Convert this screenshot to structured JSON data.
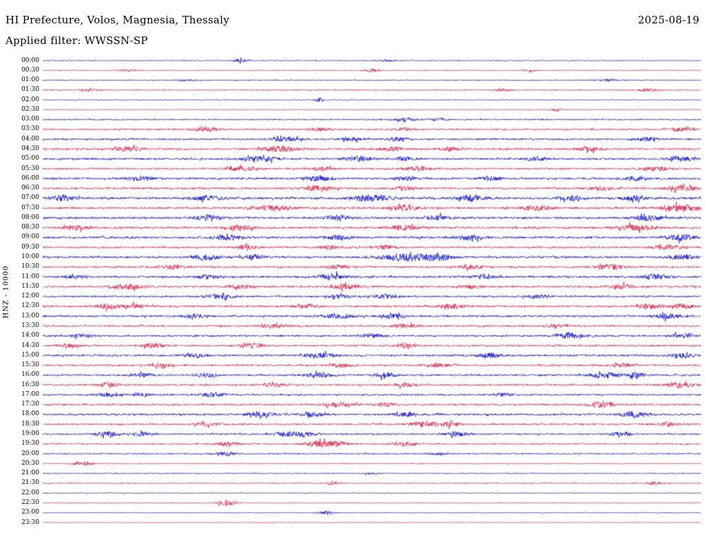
{
  "header": {
    "title": "HI Prefecture, Volos, Magnesia, Thessaly",
    "date": "2025-08-19",
    "filter_line": "Applied filter: WWSSN-SP"
  },
  "y_axis_label": "HNZ - 10000",
  "colors": {
    "background": "#ffffff",
    "text": "#000000",
    "blue": "#0000cd",
    "red": "#dc143c"
  },
  "chart_data": {
    "type": "line",
    "title": "HI Prefecture, Volos, Magnesia, Thessaly",
    "date": "2025-08-19",
    "applied_filter": "WWSSN-SP",
    "channel_scale_label": "HNZ - 10000",
    "layout_hint": "helicorder drum plot, 48 half-hour rows, alternating blue/red traces, labels on left, no grid",
    "minutes_per_row": 30,
    "rows": [
      {
        "time": "00:00",
        "color": "blue",
        "amp": 0.55,
        "bursts": [
          [
            0.3,
            0.008,
            2.2
          ],
          [
            0.52,
            0.01,
            1.3
          ]
        ]
      },
      {
        "time": "00:30",
        "color": "red",
        "amp": 0.55,
        "bursts": [
          [
            0.13,
            0.01,
            1.4
          ],
          [
            0.5,
            0.008,
            2.0
          ],
          [
            0.74,
            0.008,
            1.4
          ]
        ]
      },
      {
        "time": "01:00",
        "color": "blue",
        "amp": 0.65,
        "bursts": [
          [
            0.22,
            0.01,
            1.2
          ],
          [
            0.86,
            0.01,
            1.4
          ]
        ]
      },
      {
        "time": "01:30",
        "color": "red",
        "amp": 0.75,
        "bursts": [
          [
            0.07,
            0.01,
            1.5
          ],
          [
            0.7,
            0.01,
            1.5
          ],
          [
            0.92,
            0.01,
            2.0
          ]
        ]
      },
      {
        "time": "02:00",
        "color": "blue",
        "amp": 0.45,
        "bursts": [
          [
            0.42,
            0.004,
            3.6
          ]
        ]
      },
      {
        "time": "02:30",
        "color": "red",
        "amp": 0.55,
        "bursts": [
          [
            0.78,
            0.006,
            2.8
          ]
        ]
      },
      {
        "time": "03:00",
        "color": "blue",
        "amp": 0.85,
        "bursts": [
          [
            0.55,
            0.012,
            2.2
          ],
          [
            0.6,
            0.008,
            1.8
          ]
        ]
      },
      {
        "time": "03:30",
        "color": "red",
        "amp": 1.05,
        "bursts": [
          [
            0.25,
            0.015,
            2.4
          ],
          [
            0.42,
            0.012,
            2.0
          ],
          [
            0.55,
            0.01,
            2.0
          ],
          [
            0.97,
            0.012,
            2.4
          ]
        ]
      },
      {
        "time": "04:00",
        "color": "blue",
        "amp": 1.15,
        "bursts": [
          [
            0.37,
            0.015,
            3.0
          ],
          [
            0.47,
            0.012,
            2.4
          ],
          [
            0.54,
            0.01,
            2.4
          ],
          [
            0.92,
            0.012,
            2.4
          ]
        ]
      },
      {
        "time": "04:30",
        "color": "red",
        "amp": 1.25,
        "bursts": [
          [
            0.13,
            0.015,
            2.8
          ],
          [
            0.36,
            0.02,
            3.4
          ],
          [
            0.53,
            0.012,
            2.4
          ],
          [
            0.62,
            0.01,
            2.4
          ],
          [
            0.83,
            0.012,
            2.8
          ]
        ]
      },
      {
        "time": "05:00",
        "color": "blue",
        "amp": 1.25,
        "bursts": [
          [
            0.33,
            0.02,
            3.0
          ],
          [
            0.48,
            0.015,
            3.0
          ],
          [
            0.55,
            0.01,
            2.4
          ],
          [
            0.75,
            0.012,
            2.4
          ],
          [
            0.97,
            0.015,
            3.0
          ]
        ]
      },
      {
        "time": "05:30",
        "color": "red",
        "amp": 1.15,
        "bursts": [
          [
            0.3,
            0.015,
            2.4
          ],
          [
            0.43,
            0.012,
            2.0
          ],
          [
            0.57,
            0.015,
            2.4
          ],
          [
            0.93,
            0.015,
            2.8
          ]
        ]
      },
      {
        "time": "06:00",
        "color": "blue",
        "amp": 1.25,
        "bursts": [
          [
            0.15,
            0.015,
            2.4
          ],
          [
            0.42,
            0.015,
            3.0
          ],
          [
            0.55,
            0.012,
            2.4
          ],
          [
            0.68,
            0.012,
            2.4
          ],
          [
            0.9,
            0.012,
            2.4
          ]
        ]
      },
      {
        "time": "06:30",
        "color": "red",
        "amp": 1.25,
        "bursts": [
          [
            0.42,
            0.015,
            3.0
          ],
          [
            0.55,
            0.012,
            2.4
          ],
          [
            0.85,
            0.012,
            2.4
          ],
          [
            0.97,
            0.015,
            3.4
          ]
        ]
      },
      {
        "time": "07:00",
        "color": "blue",
        "amp": 1.45,
        "bursts": [
          [
            0.03,
            0.012,
            3.8
          ],
          [
            0.25,
            0.015,
            3.0
          ],
          [
            0.5,
            0.02,
            3.4
          ],
          [
            0.65,
            0.015,
            3.4
          ],
          [
            0.8,
            0.012,
            3.0
          ],
          [
            0.9,
            0.012,
            3.0
          ]
        ]
      },
      {
        "time": "07:30",
        "color": "red",
        "amp": 1.35,
        "bursts": [
          [
            0.35,
            0.02,
            3.0
          ],
          [
            0.55,
            0.015,
            3.0
          ],
          [
            0.75,
            0.015,
            3.0
          ],
          [
            0.97,
            0.02,
            3.8
          ]
        ]
      },
      {
        "time": "08:00",
        "color": "blue",
        "amp": 1.35,
        "bursts": [
          [
            0.25,
            0.015,
            3.0
          ],
          [
            0.45,
            0.015,
            3.0
          ],
          [
            0.6,
            0.012,
            2.4
          ],
          [
            0.92,
            0.015,
            3.4
          ]
        ]
      },
      {
        "time": "08:30",
        "color": "red",
        "amp": 1.35,
        "bursts": [
          [
            0.05,
            0.012,
            3.0
          ],
          [
            0.3,
            0.015,
            3.0
          ],
          [
            0.55,
            0.015,
            3.0
          ],
          [
            0.9,
            0.02,
            3.4
          ]
        ]
      },
      {
        "time": "09:00",
        "color": "blue",
        "amp": 1.35,
        "bursts": [
          [
            0.28,
            0.015,
            3.0
          ],
          [
            0.45,
            0.012,
            3.0
          ],
          [
            0.65,
            0.015,
            3.0
          ],
          [
            0.97,
            0.015,
            3.4
          ]
        ]
      },
      {
        "time": "09:30",
        "color": "red",
        "amp": 1.15,
        "bursts": [
          [
            0.31,
            0.012,
            3.0
          ],
          [
            0.44,
            0.012,
            2.4
          ],
          [
            0.52,
            0.012,
            2.4
          ],
          [
            0.95,
            0.015,
            3.0
          ]
        ]
      },
      {
        "time": "10:00",
        "color": "blue",
        "amp": 1.35,
        "bursts": [
          [
            0.25,
            0.015,
            3.4
          ],
          [
            0.32,
            0.012,
            3.0
          ],
          [
            0.55,
            0.025,
            4.4
          ],
          [
            0.6,
            0.015,
            3.8
          ],
          [
            0.97,
            0.015,
            3.0
          ]
        ]
      },
      {
        "time": "10:30",
        "color": "red",
        "amp": 1.15,
        "bursts": [
          [
            0.2,
            0.012,
            2.4
          ],
          [
            0.45,
            0.012,
            2.4
          ],
          [
            0.65,
            0.012,
            2.4
          ],
          [
            0.86,
            0.015,
            3.8
          ]
        ]
      },
      {
        "time": "11:00",
        "color": "blue",
        "amp": 1.25,
        "bursts": [
          [
            0.05,
            0.012,
            2.4
          ],
          [
            0.25,
            0.012,
            2.4
          ],
          [
            0.44,
            0.015,
            3.4
          ],
          [
            0.67,
            0.012,
            3.0
          ],
          [
            0.93,
            0.015,
            3.0
          ]
        ]
      },
      {
        "time": "11:30",
        "color": "red",
        "amp": 1.25,
        "bursts": [
          [
            0.13,
            0.015,
            3.4
          ],
          [
            0.3,
            0.012,
            2.4
          ],
          [
            0.46,
            0.015,
            3.0
          ],
          [
            0.65,
            0.012,
            2.4
          ],
          [
            0.88,
            0.012,
            2.4
          ]
        ]
      },
      {
        "time": "12:00",
        "color": "blue",
        "amp": 1.15,
        "bursts": [
          [
            0.27,
            0.015,
            3.0
          ],
          [
            0.45,
            0.012,
            2.4
          ],
          [
            0.52,
            0.012,
            2.4
          ],
          [
            0.75,
            0.012,
            2.4
          ]
        ]
      },
      {
        "time": "12:30",
        "color": "red",
        "amp": 1.25,
        "bursts": [
          [
            0.1,
            0.012,
            3.4
          ],
          [
            0.14,
            0.01,
            3.0
          ],
          [
            0.4,
            0.012,
            2.4
          ],
          [
            0.62,
            0.012,
            3.0
          ],
          [
            0.92,
            0.012,
            3.0
          ],
          [
            0.97,
            0.012,
            3.4
          ]
        ]
      },
      {
        "time": "13:00",
        "color": "blue",
        "amp": 1.25,
        "bursts": [
          [
            0.23,
            0.012,
            2.4
          ],
          [
            0.45,
            0.015,
            3.0
          ],
          [
            0.53,
            0.012,
            3.0
          ],
          [
            0.95,
            0.015,
            3.0
          ]
        ]
      },
      {
        "time": "13:30",
        "color": "red",
        "amp": 1.15,
        "bursts": [
          [
            0.35,
            0.015,
            2.4
          ],
          [
            0.55,
            0.012,
            2.4
          ],
          [
            0.78,
            0.012,
            2.4
          ]
        ]
      },
      {
        "time": "14:00",
        "color": "blue",
        "amp": 1.15,
        "bursts": [
          [
            0.06,
            0.01,
            2.4
          ],
          [
            0.5,
            0.012,
            2.4
          ],
          [
            0.8,
            0.015,
            3.8
          ],
          [
            0.97,
            0.012,
            2.4
          ]
        ]
      },
      {
        "time": "14:30",
        "color": "red",
        "amp": 1.15,
        "bursts": [
          [
            0.04,
            0.01,
            2.4
          ],
          [
            0.17,
            0.012,
            3.0
          ],
          [
            0.32,
            0.012,
            3.0
          ],
          [
            0.55,
            0.012,
            2.4
          ]
        ]
      },
      {
        "time": "15:00",
        "color": "blue",
        "amp": 1.25,
        "bursts": [
          [
            0.23,
            0.012,
            2.4
          ],
          [
            0.42,
            0.015,
            3.0
          ],
          [
            0.68,
            0.012,
            3.0
          ],
          [
            0.97,
            0.012,
            3.0
          ]
        ]
      },
      {
        "time": "15:30",
        "color": "red",
        "amp": 1.15,
        "bursts": [
          [
            0.18,
            0.012,
            2.4
          ],
          [
            0.45,
            0.012,
            2.4
          ],
          [
            0.6,
            0.012,
            2.4
          ],
          [
            0.88,
            0.012,
            2.4
          ]
        ]
      },
      {
        "time": "16:00",
        "color": "blue",
        "amp": 1.15,
        "bursts": [
          [
            0.15,
            0.012,
            2.4
          ],
          [
            0.25,
            0.012,
            2.4
          ],
          [
            0.42,
            0.015,
            3.0
          ],
          [
            0.52,
            0.012,
            3.0
          ],
          [
            0.85,
            0.015,
            3.4
          ],
          [
            0.9,
            0.012,
            3.0
          ]
        ]
      },
      {
        "time": "16:30",
        "color": "red",
        "amp": 1.15,
        "bursts": [
          [
            0.1,
            0.012,
            2.4
          ],
          [
            0.35,
            0.012,
            2.4
          ],
          [
            0.55,
            0.012,
            2.4
          ],
          [
            0.97,
            0.015,
            3.0
          ]
        ]
      },
      {
        "time": "17:00",
        "color": "blue",
        "amp": 1.05,
        "bursts": [
          [
            0.1,
            0.012,
            2.4
          ],
          [
            0.15,
            0.01,
            2.4
          ],
          [
            0.26,
            0.012,
            3.0
          ],
          [
            0.7,
            0.01,
            2.0
          ]
        ]
      },
      {
        "time": "17:30",
        "color": "red",
        "amp": 1.15,
        "bursts": [
          [
            0.45,
            0.015,
            3.4
          ],
          [
            0.52,
            0.01,
            2.4
          ],
          [
            0.85,
            0.015,
            3.4
          ]
        ]
      },
      {
        "time": "18:00",
        "color": "blue",
        "amp": 1.25,
        "bursts": [
          [
            0.33,
            0.015,
            3.0
          ],
          [
            0.41,
            0.012,
            3.0
          ],
          [
            0.55,
            0.012,
            2.4
          ],
          [
            0.9,
            0.015,
            3.4
          ]
        ]
      },
      {
        "time": "18:30",
        "color": "red",
        "amp": 1.15,
        "bursts": [
          [
            0.25,
            0.012,
            2.4
          ],
          [
            0.58,
            0.015,
            3.4
          ],
          [
            0.62,
            0.01,
            3.0
          ],
          [
            0.95,
            0.012,
            2.4
          ]
        ]
      },
      {
        "time": "19:00",
        "color": "blue",
        "amp": 1.05,
        "bursts": [
          [
            0.1,
            0.012,
            3.0
          ],
          [
            0.15,
            0.01,
            2.4
          ],
          [
            0.37,
            0.012,
            3.4
          ],
          [
            0.4,
            0.01,
            3.0
          ],
          [
            0.63,
            0.012,
            3.0
          ],
          [
            0.88,
            0.012,
            3.0
          ]
        ]
      },
      {
        "time": "19:30",
        "color": "red",
        "amp": 0.95,
        "bursts": [
          [
            0.28,
            0.012,
            3.0
          ],
          [
            0.42,
            0.015,
            4.0
          ],
          [
            0.45,
            0.01,
            3.4
          ],
          [
            0.55,
            0.012,
            2.4
          ]
        ]
      },
      {
        "time": "20:00",
        "color": "blue",
        "amp": 0.85,
        "bursts": [
          [
            0.28,
            0.012,
            2.4
          ],
          [
            0.6,
            0.01,
            1.4
          ]
        ]
      },
      {
        "time": "20:30",
        "color": "red",
        "amp": 0.65,
        "bursts": [
          [
            0.06,
            0.012,
            2.4
          ]
        ]
      },
      {
        "time": "21:00",
        "color": "blue",
        "amp": 0.65,
        "bursts": [
          [
            0.5,
            0.008,
            1.2
          ]
        ]
      },
      {
        "time": "21:30",
        "color": "red",
        "amp": 0.75,
        "bursts": [
          [
            0.44,
            0.006,
            2.4
          ],
          [
            0.93,
            0.008,
            2.0
          ]
        ]
      },
      {
        "time": "22:00",
        "color": "blue",
        "amp": 0.45,
        "bursts": []
      },
      {
        "time": "22:30",
        "color": "red",
        "amp": 0.55,
        "bursts": [
          [
            0.28,
            0.01,
            3.4
          ]
        ]
      },
      {
        "time": "23:00",
        "color": "blue",
        "amp": 0.45,
        "bursts": [
          [
            0.43,
            0.008,
            2.4
          ]
        ]
      },
      {
        "time": "23:30",
        "color": "red",
        "amp": 0.4,
        "bursts": []
      }
    ]
  }
}
